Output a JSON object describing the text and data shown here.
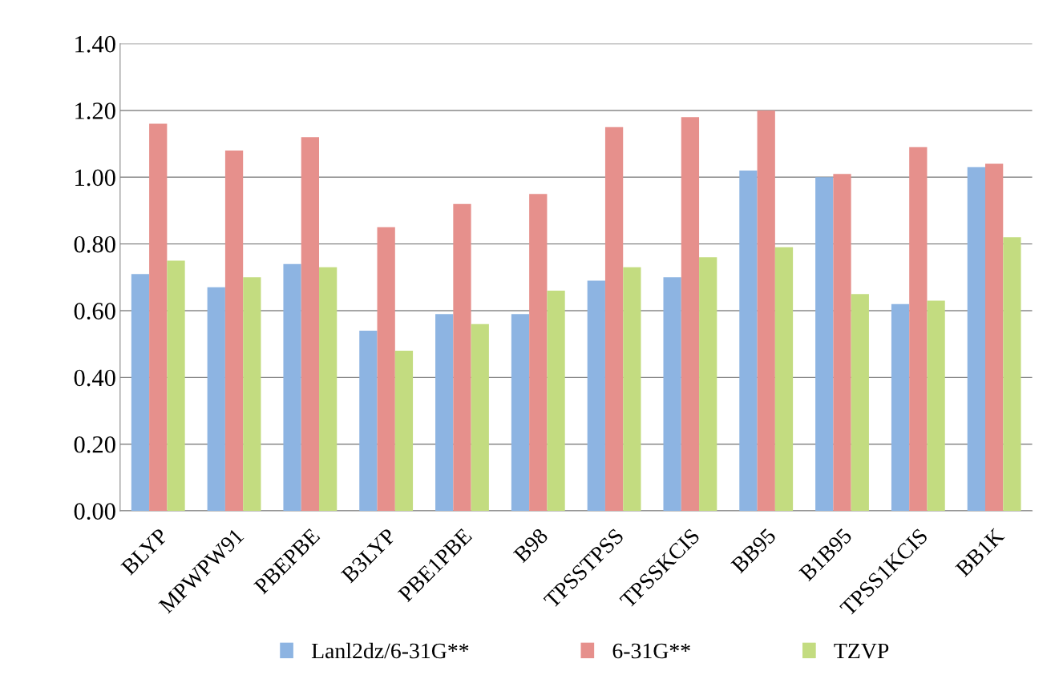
{
  "chart_data": {
    "type": "bar",
    "categories": [
      "BLYP",
      "MPWPW91",
      "PBEPBE",
      "B3LYP",
      "PBE1PBE",
      "B98",
      "TPSSTPSS",
      "TPSSKCIS",
      "BB95",
      "B1B95",
      "TPSS1KCIS",
      "BB1K"
    ],
    "series": [
      {
        "name": "Lanl2dz/6-31G**",
        "color": "#8db4e2",
        "values": [
          0.71,
          0.67,
          0.74,
          0.54,
          0.59,
          0.59,
          0.69,
          0.7,
          1.02,
          1.0,
          0.62,
          1.03
        ]
      },
      {
        "name": "6-31G**",
        "color": "#e6908c",
        "values": [
          1.16,
          1.08,
          1.12,
          0.85,
          0.92,
          0.95,
          1.15,
          1.18,
          1.2,
          1.01,
          1.09,
          1.04
        ]
      },
      {
        "name": "TZVP",
        "color": "#c3dc80",
        "values": [
          0.75,
          0.7,
          0.73,
          0.48,
          0.56,
          0.66,
          0.73,
          0.76,
          0.79,
          0.65,
          0.63,
          0.82
        ]
      }
    ],
    "ylim": [
      0,
      1.4
    ],
    "yticks": [
      {
        "value": 0,
        "label": "0.00"
      },
      {
        "value": 0.2,
        "label": "0.20"
      },
      {
        "value": 0.4,
        "label": "0.40"
      },
      {
        "value": 0.6,
        "label": "0.60"
      },
      {
        "value": 0.8,
        "label": "0.80"
      },
      {
        "value": 1.0,
        "label": "1.00"
      },
      {
        "value": 1.2,
        "label": "1.20"
      },
      {
        "value": 1.4,
        "label": "1.40"
      }
    ],
    "grid": "y",
    "legend": "bottom"
  }
}
